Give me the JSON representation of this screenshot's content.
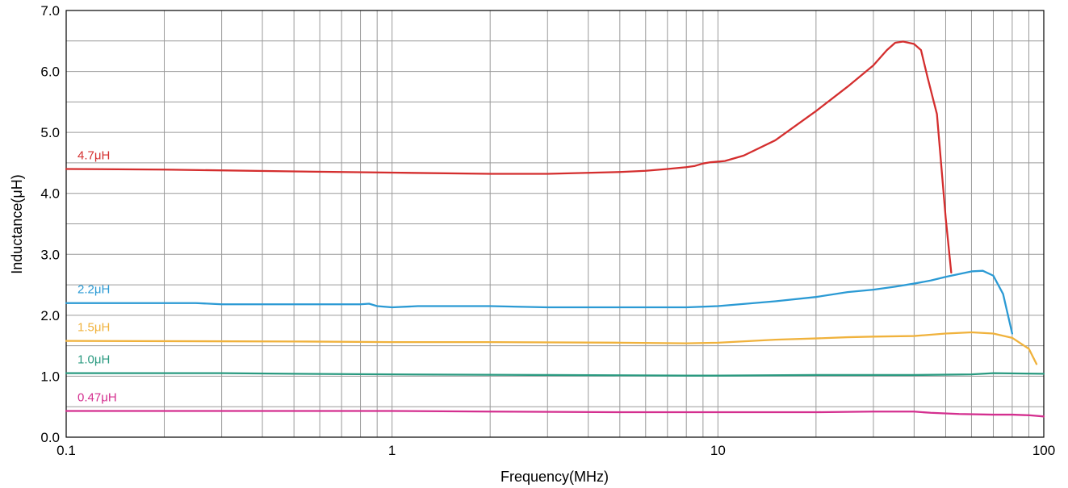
{
  "chart_data": {
    "type": "line",
    "title": "",
    "xlabel": "Frequency(MHz)",
    "ylabel": "Inductance(μH)",
    "x_scale": "log",
    "xlim": [
      0.1,
      100
    ],
    "ylim": [
      0,
      7
    ],
    "grid": true,
    "legend": "inline labels at left of each curve",
    "x_ticks": [
      {
        "value": 0.1,
        "label": "0.1"
      },
      {
        "value": 1,
        "label": "1"
      },
      {
        "value": 10,
        "label": "10"
      },
      {
        "value": 100,
        "label": "100"
      }
    ],
    "y_ticks": [
      {
        "value": 0,
        "label": "0.0"
      },
      {
        "value": 1,
        "label": "1.0"
      },
      {
        "value": 2,
        "label": "2.0"
      },
      {
        "value": 3,
        "label": "3.0"
      },
      {
        "value": 4,
        "label": "4.0"
      },
      {
        "value": 5,
        "label": "5.0"
      },
      {
        "value": 6,
        "label": "6.0"
      },
      {
        "value": 7,
        "label": "7.0"
      }
    ],
    "series": [
      {
        "name": "4.7μH",
        "color": "#d42e2e",
        "points": [
          [
            0.1,
            4.4
          ],
          [
            0.2,
            4.39
          ],
          [
            0.5,
            4.36
          ],
          [
            1,
            4.34
          ],
          [
            2,
            4.32
          ],
          [
            3,
            4.32
          ],
          [
            5,
            4.35
          ],
          [
            6,
            4.37
          ],
          [
            7,
            4.4
          ],
          [
            8,
            4.43
          ],
          [
            8.5,
            4.45
          ],
          [
            9,
            4.49
          ],
          [
            9.5,
            4.51
          ],
          [
            10.5,
            4.53
          ],
          [
            12,
            4.62
          ],
          [
            15,
            4.87
          ],
          [
            20,
            5.35
          ],
          [
            25,
            5.75
          ],
          [
            30,
            6.1
          ],
          [
            33,
            6.35
          ],
          [
            35,
            6.47
          ],
          [
            37,
            6.49
          ],
          [
            40,
            6.45
          ],
          [
            42,
            6.35
          ],
          [
            44,
            5.9
          ],
          [
            47,
            5.3
          ],
          [
            50,
            3.6
          ],
          [
            52,
            2.7
          ]
        ]
      },
      {
        "name": "2.2μH",
        "color": "#2b9ad4",
        "points": [
          [
            0.1,
            2.2
          ],
          [
            0.25,
            2.2
          ],
          [
            0.3,
            2.18
          ],
          [
            0.5,
            2.18
          ],
          [
            0.8,
            2.18
          ],
          [
            0.85,
            2.19
          ],
          [
            0.9,
            2.15
          ],
          [
            1,
            2.13
          ],
          [
            1.2,
            2.15
          ],
          [
            2,
            2.15
          ],
          [
            3,
            2.13
          ],
          [
            5,
            2.13
          ],
          [
            8,
            2.13
          ],
          [
            10,
            2.15
          ],
          [
            15,
            2.23
          ],
          [
            20,
            2.3
          ],
          [
            25,
            2.38
          ],
          [
            30,
            2.42
          ],
          [
            35,
            2.47
          ],
          [
            40,
            2.52
          ],
          [
            45,
            2.57
          ],
          [
            50,
            2.63
          ],
          [
            60,
            2.72
          ],
          [
            65,
            2.73
          ],
          [
            70,
            2.65
          ],
          [
            75,
            2.35
          ],
          [
            80,
            1.7
          ]
        ]
      },
      {
        "name": "1.5μH",
        "color": "#f0b23c",
        "points": [
          [
            0.1,
            1.58
          ],
          [
            0.5,
            1.57
          ],
          [
            1,
            1.56
          ],
          [
            2,
            1.56
          ],
          [
            5,
            1.55
          ],
          [
            8,
            1.54
          ],
          [
            10,
            1.55
          ],
          [
            15,
            1.6
          ],
          [
            20,
            1.62
          ],
          [
            25,
            1.64
          ],
          [
            30,
            1.65
          ],
          [
            40,
            1.66
          ],
          [
            50,
            1.7
          ],
          [
            60,
            1.72
          ],
          [
            70,
            1.7
          ],
          [
            80,
            1.63
          ],
          [
            90,
            1.45
          ],
          [
            95,
            1.2
          ]
        ]
      },
      {
        "name": "1.0μH",
        "color": "#2a9a80",
        "points": [
          [
            0.1,
            1.05
          ],
          [
            0.3,
            1.05
          ],
          [
            0.5,
            1.04
          ],
          [
            1,
            1.03
          ],
          [
            3,
            1.02
          ],
          [
            8,
            1.01
          ],
          [
            10,
            1.01
          ],
          [
            20,
            1.02
          ],
          [
            40,
            1.02
          ],
          [
            60,
            1.03
          ],
          [
            70,
            1.05
          ],
          [
            100,
            1.04
          ]
        ]
      },
      {
        "name": "0.47μH",
        "color": "#d42f8f",
        "points": [
          [
            0.1,
            0.43
          ],
          [
            0.5,
            0.43
          ],
          [
            1,
            0.43
          ],
          [
            2,
            0.42
          ],
          [
            5,
            0.41
          ],
          [
            10,
            0.41
          ],
          [
            20,
            0.41
          ],
          [
            30,
            0.42
          ],
          [
            40,
            0.42
          ],
          [
            45,
            0.4
          ],
          [
            55,
            0.38
          ],
          [
            70,
            0.37
          ],
          [
            80,
            0.37
          ],
          [
            90,
            0.36
          ],
          [
            100,
            0.34
          ]
        ]
      }
    ]
  }
}
